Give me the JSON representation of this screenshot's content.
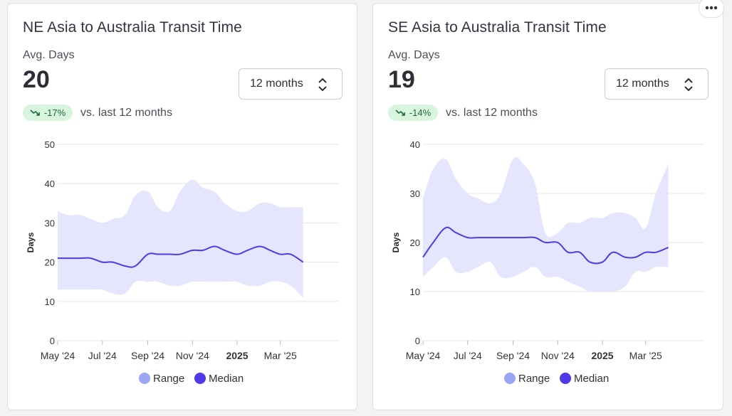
{
  "cards": [
    {
      "title": "NE Asia to Australia Transit Time",
      "metric_label": "Avg. Days",
      "metric_value": "20",
      "delta": "-17%",
      "delta_text": "vs. last 12 months",
      "select_value": "12 months"
    },
    {
      "title": "SE Asia to Australia Transit Time",
      "metric_label": "Avg. Days",
      "metric_value": "19",
      "delta": "-14%",
      "delta_text": "vs. last 12 months",
      "select_value": "12 months"
    }
  ],
  "colors": {
    "median": "#4f3ae8",
    "range_fill": "#e5e6fd",
    "range_legend": "#9aa6f3",
    "badge_bg": "#d9f5df",
    "badge_text": "#1f6b36"
  },
  "chart_data": [
    {
      "type": "area",
      "ylabel": "Days",
      "ylim": [
        0,
        50
      ],
      "yticks": [
        0,
        10,
        20,
        30,
        40,
        50
      ],
      "xtick_labels": [
        "May '24",
        "Jul '24",
        "Sep '24",
        "Nov '24",
        "2025",
        "Mar '25"
      ],
      "bold_xtick": "2025",
      "x": [
        "2024-05-01",
        "2024-05-15",
        "2024-06-01",
        "2024-06-15",
        "2024-07-01",
        "2024-07-15",
        "2024-08-01",
        "2024-08-15",
        "2024-09-01",
        "2024-09-15",
        "2024-10-01",
        "2024-10-15",
        "2024-11-01",
        "2024-11-15",
        "2024-12-01",
        "2024-12-15",
        "2025-01-01",
        "2025-01-15",
        "2025-02-01",
        "2025-02-15",
        "2025-03-01",
        "2025-03-15",
        "2025-04-01"
      ],
      "legend": [
        "Range",
        "Median"
      ],
      "series": [
        {
          "name": "Range",
          "kind": "band",
          "low": [
            13,
            13,
            13,
            13,
            13,
            12,
            12,
            15,
            15,
            15,
            14,
            14,
            15,
            15,
            15,
            15,
            15,
            14,
            14,
            15,
            15,
            14,
            11
          ],
          "high": [
            33,
            32,
            32,
            31,
            30,
            31,
            32,
            37,
            38,
            34,
            33,
            38,
            41,
            39,
            38,
            35,
            33,
            33,
            35,
            35,
            34,
            34,
            34
          ]
        },
        {
          "name": "Median",
          "kind": "line",
          "values": [
            21,
            21,
            21,
            21,
            20,
            20,
            19,
            19,
            22,
            22,
            22,
            22,
            23,
            23,
            24,
            23,
            22,
            23,
            24,
            23,
            22,
            22,
            20
          ]
        }
      ]
    },
    {
      "type": "area",
      "ylabel": "Days",
      "ylim": [
        0,
        40
      ],
      "yticks": [
        0,
        10,
        20,
        30,
        40
      ],
      "xtick_labels": [
        "May '24",
        "Jul '24",
        "Sep '24",
        "Nov '24",
        "2025",
        "Mar '25"
      ],
      "bold_xtick": "2025",
      "x": [
        "2024-05-01",
        "2024-05-15",
        "2024-06-01",
        "2024-06-15",
        "2024-07-01",
        "2024-07-15",
        "2024-08-01",
        "2024-08-15",
        "2024-09-01",
        "2024-09-15",
        "2024-10-01",
        "2024-10-15",
        "2024-11-01",
        "2024-11-15",
        "2024-12-01",
        "2024-12-15",
        "2025-01-01",
        "2025-01-15",
        "2025-02-01",
        "2025-02-15",
        "2025-03-01",
        "2025-03-15",
        "2025-04-01"
      ],
      "legend": [
        "Range",
        "Median"
      ],
      "series": [
        {
          "name": "Range",
          "kind": "band",
          "low": [
            13,
            15,
            17,
            14,
            14,
            15,
            16,
            13,
            13,
            14,
            15,
            13,
            13,
            12,
            11,
            10,
            10,
            10,
            11,
            14,
            14,
            15,
            15
          ],
          "high": [
            29,
            35,
            37,
            33,
            30,
            29,
            28,
            30,
            37,
            36,
            32,
            22,
            22,
            24,
            24,
            25,
            25,
            26,
            26,
            25,
            23,
            30,
            36
          ]
        },
        {
          "name": "Median",
          "kind": "line",
          "values": [
            17,
            20,
            23,
            22,
            21,
            21,
            21,
            21,
            21,
            21,
            21,
            20,
            20,
            18,
            18,
            16,
            16,
            18,
            17,
            17,
            18,
            18,
            19
          ]
        }
      ]
    }
  ]
}
